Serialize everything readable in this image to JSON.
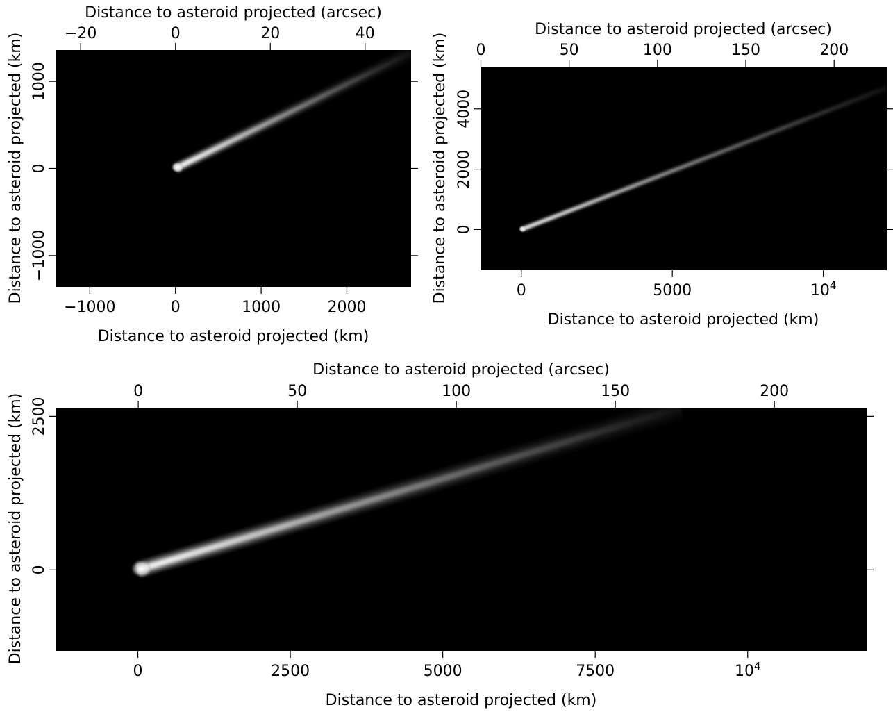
{
  "chart_data": [
    {
      "type": "heatmap",
      "panel": "top-left",
      "background": "#000000",
      "xlabel": "Distance to asteroid projected (km)",
      "ylabel": "Distance to asteroid projected (km)",
      "x2label": "Distance to asteroid projected (arcsec)",
      "xlim": [
        -1400,
        2750
      ],
      "ylim": [
        -1360,
        1360
      ],
      "x2lim": [
        -25.3,
        49.7
      ],
      "xticks": [
        {
          "v": -1000,
          "t": "−1000"
        },
        {
          "v": 0,
          "t": "0"
        },
        {
          "v": 1000,
          "t": "1000"
        },
        {
          "v": 2000,
          "t": "2000"
        }
      ],
      "yticks": [
        {
          "v": -1000,
          "t": "−1000"
        },
        {
          "v": 0,
          "t": "0"
        },
        {
          "v": 1000,
          "t": "1000"
        }
      ],
      "x2ticks": [
        {
          "v": -20,
          "t": "−20"
        },
        {
          "v": 0,
          "t": "0"
        },
        {
          "v": 20,
          "t": "20"
        },
        {
          "v": 40,
          "t": "40"
        }
      ],
      "tail": {
        "start": [
          0,
          0
        ],
        "end": [
          2750,
          1330
        ],
        "width_km": 70,
        "head_km": 70,
        "peak": 0.95
      }
    },
    {
      "type": "heatmap",
      "panel": "top-right",
      "background": "#000000",
      "xlabel": "Distance to asteroid projected (km)",
      "ylabel": "Distance to asteroid projected (km)",
      "x2label": "Distance to asteroid projected (arcsec)",
      "xlim": [
        -1350,
        12100
      ],
      "ylim": [
        -1350,
        5400
      ],
      "x2lim": [
        -0.2,
        229.8
      ],
      "xticks": [
        {
          "v": 0,
          "t": "0"
        },
        {
          "v": 5000,
          "t": "5000"
        },
        {
          "v": 10000,
          "t": "10",
          "sup": "4"
        }
      ],
      "yticks": [
        {
          "v": 0,
          "t": "0"
        },
        {
          "v": 2000,
          "t": "2000"
        },
        {
          "v": 4000,
          "t": "4000"
        }
      ],
      "x2ticks": [
        {
          "v": 0,
          "t": "0"
        },
        {
          "v": 50,
          "t": "50"
        },
        {
          "v": 100,
          "t": "100"
        },
        {
          "v": 150,
          "t": "150"
        },
        {
          "v": 200,
          "t": "200"
        }
      ],
      "tail": {
        "start": [
          0,
          0
        ],
        "end": [
          12100,
          4700
        ],
        "width_km": 110,
        "head_km": 120,
        "peak": 0.9
      }
    },
    {
      "type": "heatmap",
      "panel": "bottom",
      "background": "#000000",
      "xlabel": "Distance to asteroid projected (km)",
      "ylabel": "Distance to asteroid projected (km)",
      "x2label": "Distance to asteroid projected (arcsec)",
      "xlim": [
        -1350,
        11950
      ],
      "ylim": [
        -1320,
        2640
      ],
      "x2lim": [
        -26,
        229
      ],
      "xticks": [
        {
          "v": 0,
          "t": "0"
        },
        {
          "v": 2500,
          "t": "2500"
        },
        {
          "v": 5000,
          "t": "5000"
        },
        {
          "v": 7500,
          "t": "7500"
        },
        {
          "v": 10000,
          "t": "10",
          "sup": "4"
        }
      ],
      "yticks": [
        {
          "v": 0,
          "t": "0"
        },
        {
          "v": 2500,
          "t": "2500"
        }
      ],
      "x2ticks": [
        {
          "v": 0,
          "t": "0"
        },
        {
          "v": 50,
          "t": "50"
        },
        {
          "v": 100,
          "t": "100"
        },
        {
          "v": 150,
          "t": "150"
        },
        {
          "v": 200,
          "t": "200"
        }
      ],
      "tail": {
        "start": [
          0,
          0
        ],
        "end": [
          8900,
          2640
        ],
        "width_km": 150,
        "head_km": 160,
        "peak": 0.85
      }
    }
  ]
}
